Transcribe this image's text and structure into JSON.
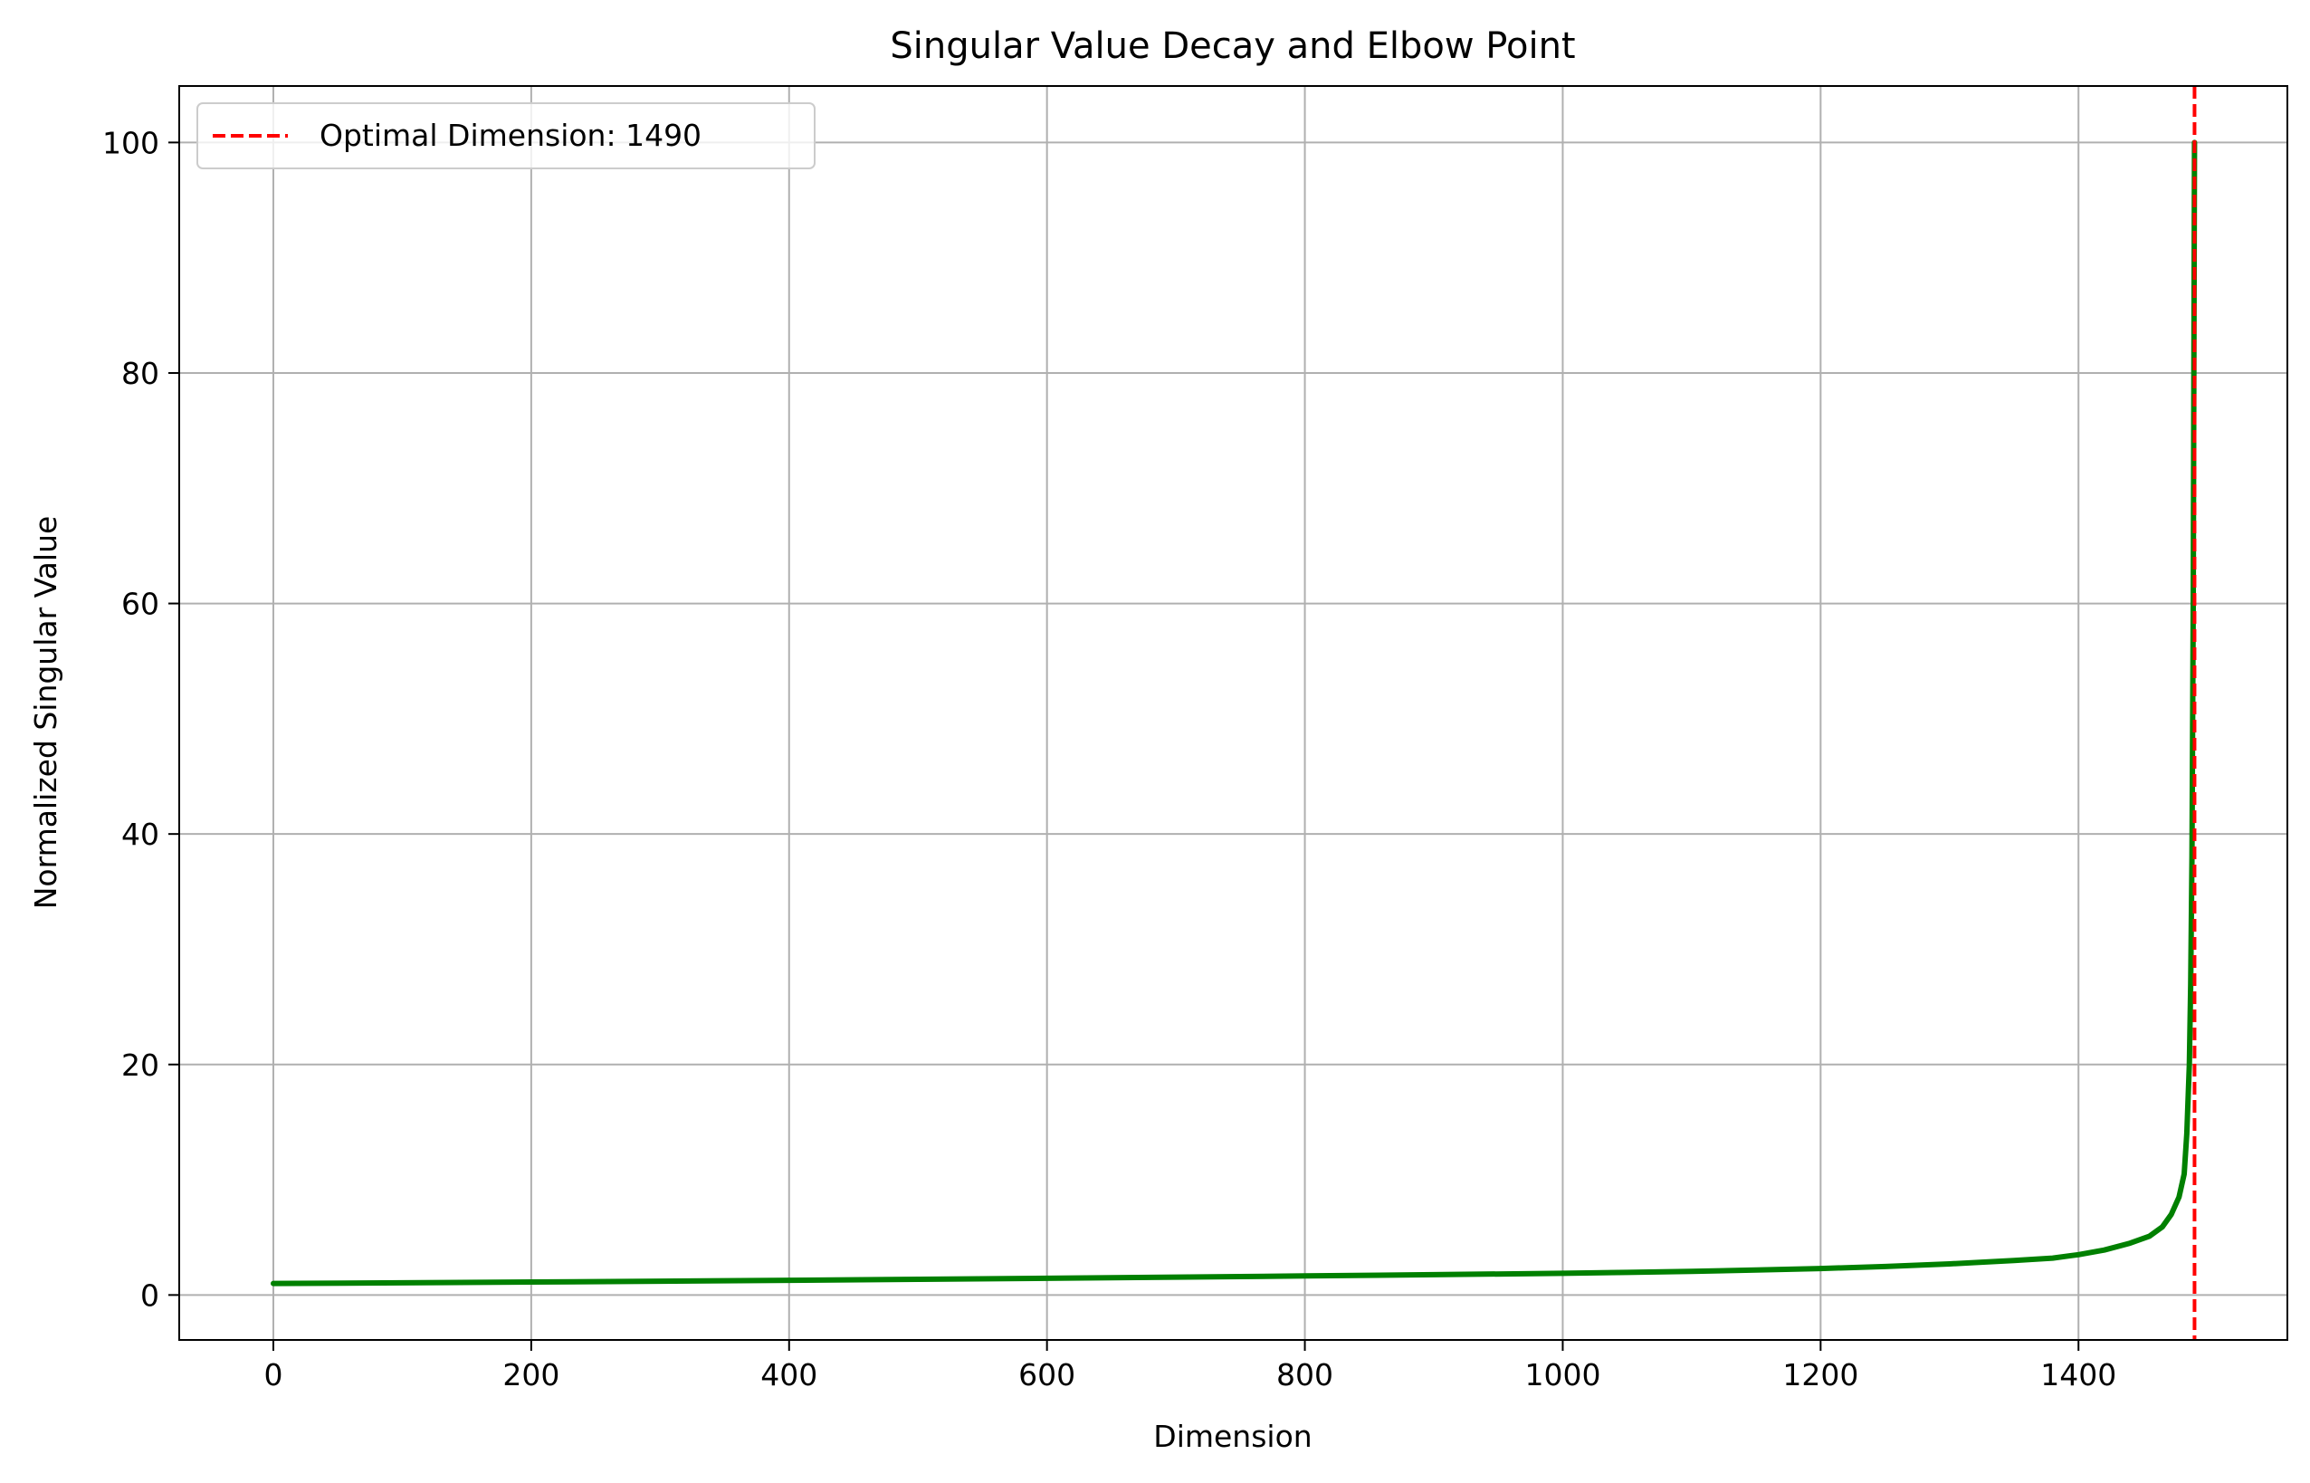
{
  "chart_data": {
    "type": "line",
    "title": "Singular Value Decay and Elbow Point",
    "xlabel": "Dimension",
    "ylabel": "Normalized Singular Value",
    "xlim": [
      -73,
      1562
    ],
    "ylim": [
      -3.9,
      104.9
    ],
    "xticks": [
      0,
      200,
      400,
      600,
      800,
      1000,
      1200,
      1400
    ],
    "yticks": [
      0,
      20,
      40,
      60,
      80,
      100
    ],
    "grid": true,
    "legend": {
      "placement": "top-left"
    },
    "series": [
      {
        "color": "#008000",
        "x": [
          0,
          100,
          200,
          300,
          400,
          500,
          600,
          700,
          800,
          900,
          1000,
          1050,
          1100,
          1150,
          1200,
          1250,
          1300,
          1350,
          1380,
          1400,
          1420,
          1440,
          1455,
          1465,
          1472,
          1478,
          1482,
          1484,
          1486,
          1487,
          1488,
          1489,
          1490
        ],
        "y": [
          1.0,
          1.06,
          1.13,
          1.2,
          1.28,
          1.36,
          1.45,
          1.55,
          1.65,
          1.76,
          1.88,
          1.96,
          2.05,
          2.17,
          2.3,
          2.47,
          2.7,
          3.0,
          3.2,
          3.5,
          3.9,
          4.5,
          5.1,
          5.9,
          7.0,
          8.5,
          10.5,
          14.0,
          20.0,
          27.0,
          38.0,
          60.0,
          100.0
        ]
      }
    ],
    "reference_lines": [
      {
        "orientation": "vertical",
        "x": 1490,
        "color": "#ff0000",
        "style": "dashed",
        "label": "Optimal Dimension: 1490"
      }
    ]
  }
}
